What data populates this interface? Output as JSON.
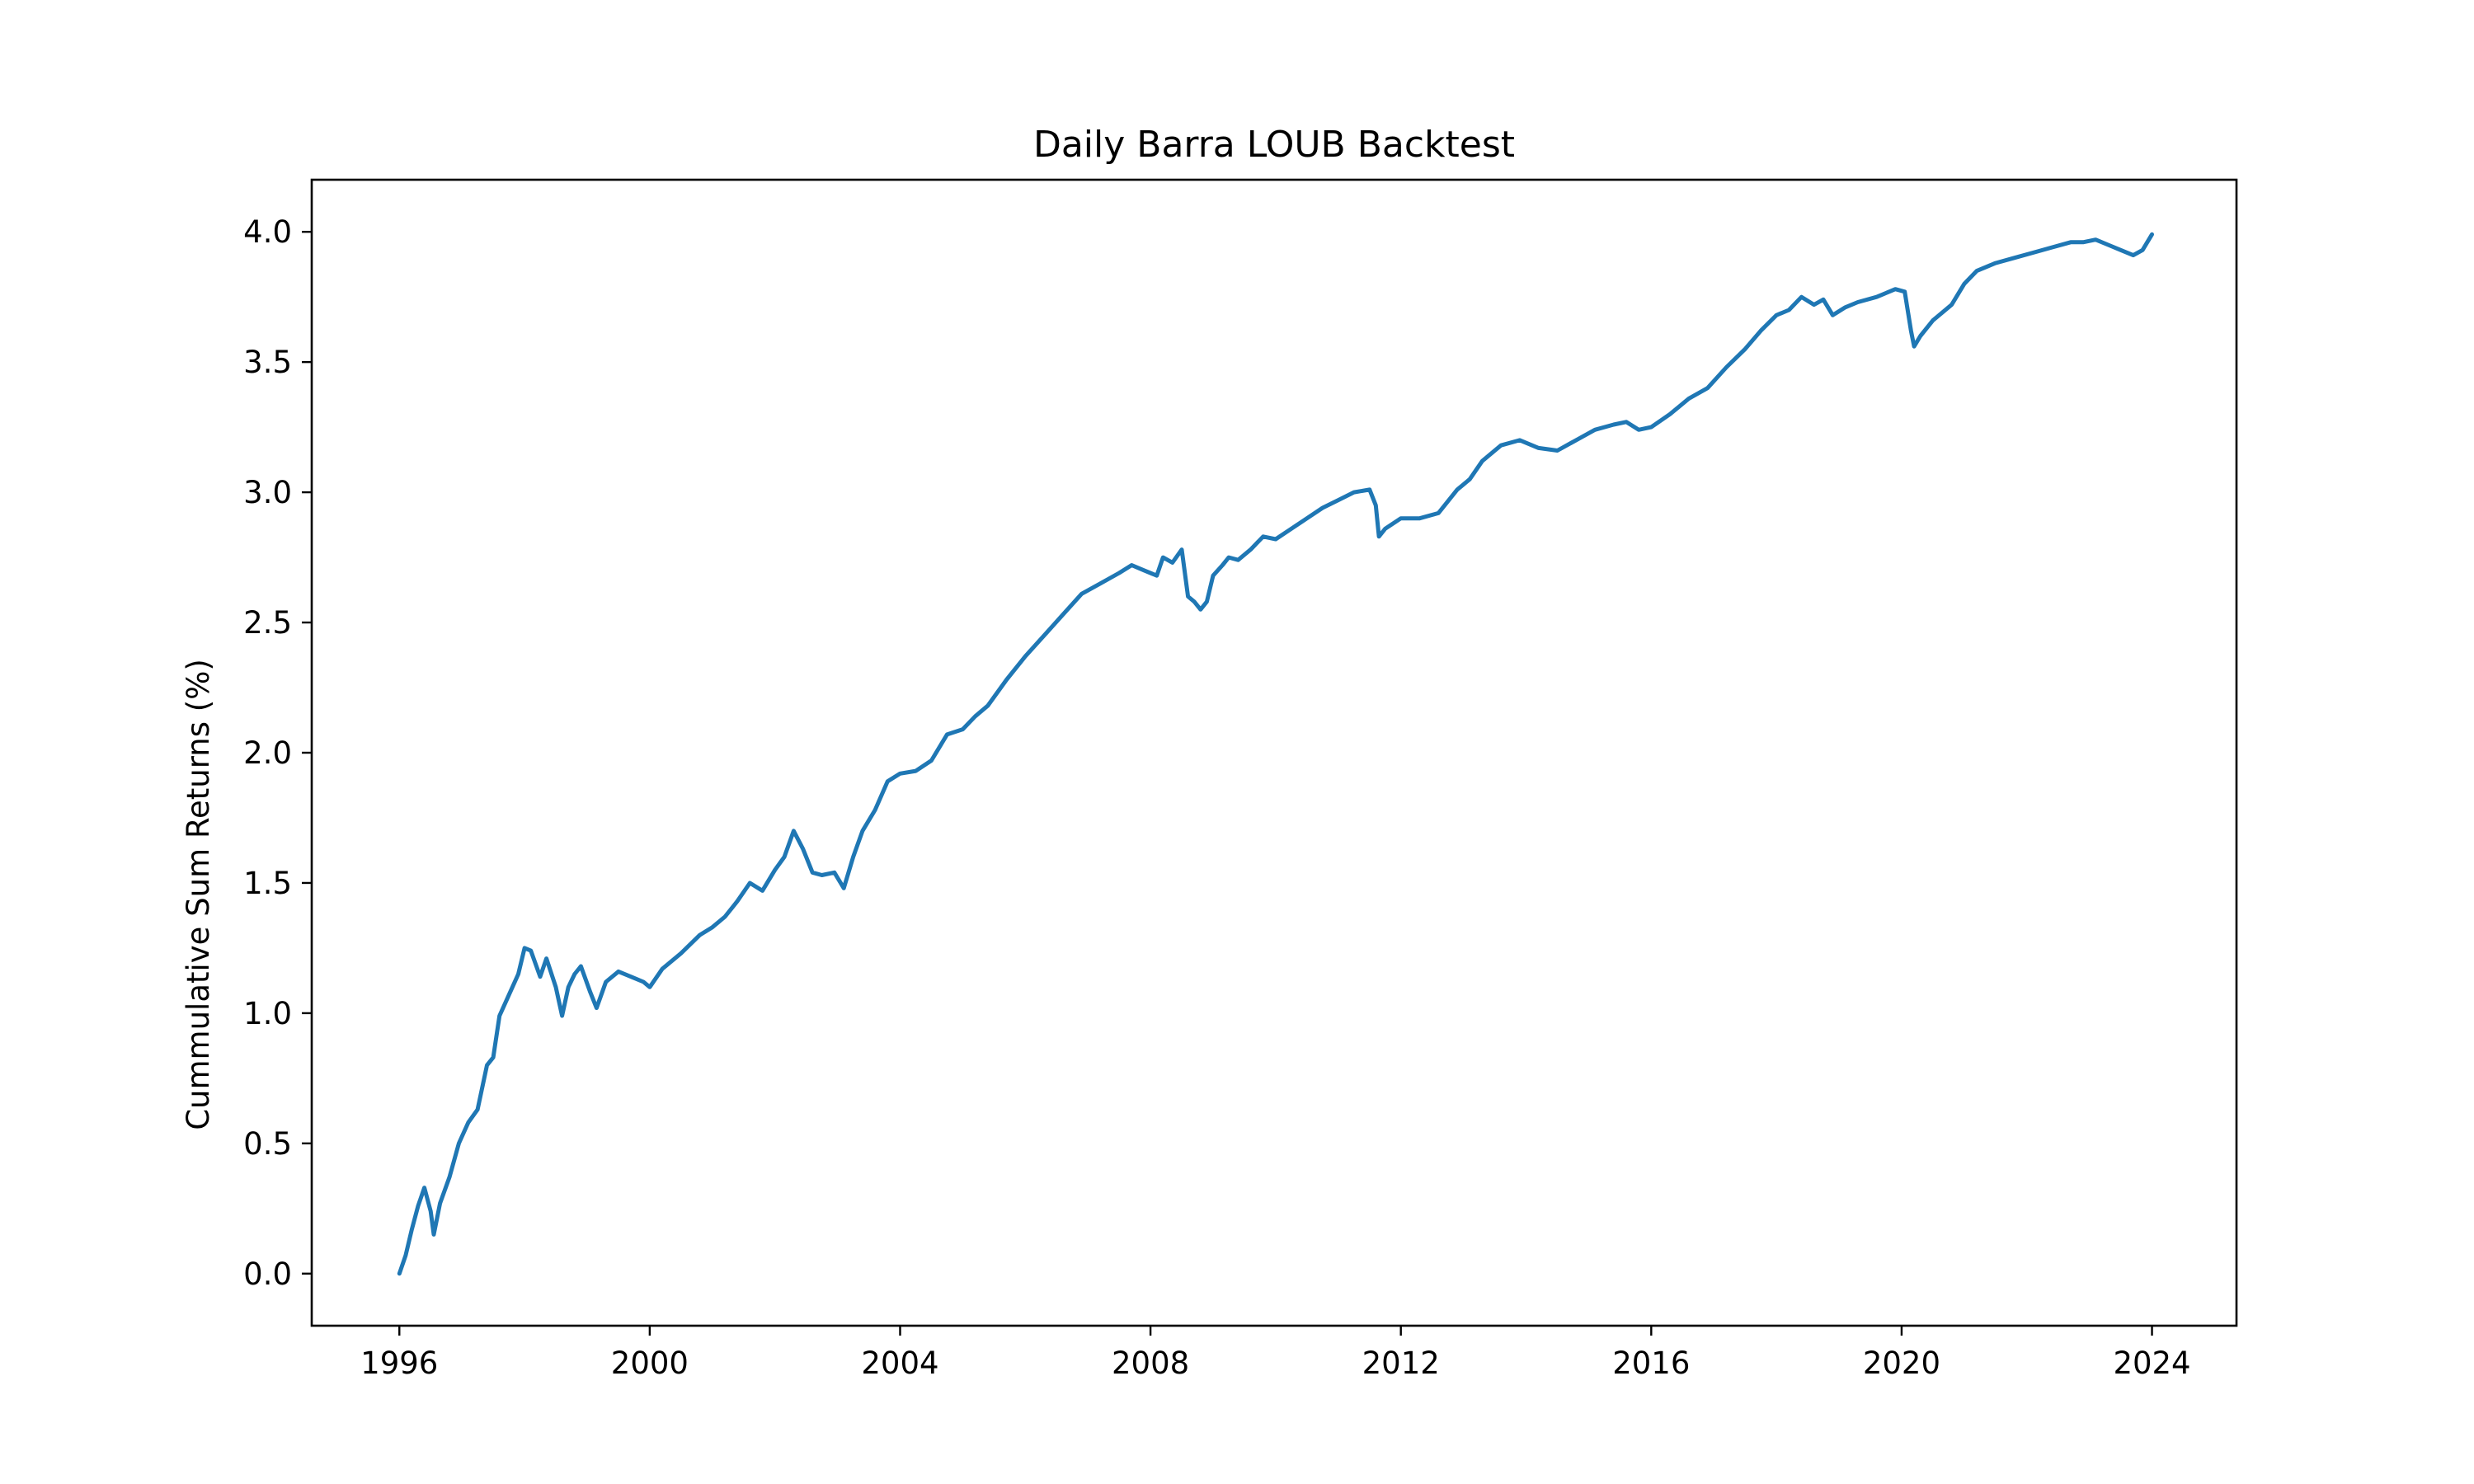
{
  "chart_data": {
    "type": "line",
    "title": "Daily Barra LOUB Backtest",
    "xlabel": "",
    "ylabel": "Cummulative Sum Returns (%)",
    "xlim": [
      1994.6,
      2025.35
    ],
    "ylim": [
      -0.2,
      4.2
    ],
    "x_ticks": [
      1996,
      2000,
      2004,
      2008,
      2012,
      2016,
      2020,
      2024
    ],
    "x_tick_labels": [
      "1996",
      "2000",
      "2004",
      "2008",
      "2012",
      "2016",
      "2020",
      "2024"
    ],
    "y_ticks": [
      0.0,
      0.5,
      1.0,
      1.5,
      2.0,
      2.5,
      3.0,
      3.5,
      4.0
    ],
    "y_tick_labels": [
      "0.0",
      "0.5",
      "1.0",
      "1.5",
      "2.0",
      "2.5",
      "3.0",
      "3.5",
      "4.0"
    ],
    "grid": false,
    "legend": "none",
    "series": [
      {
        "color": "#1f77b4",
        "x": [
          1996.0,
          1996.1,
          1996.2,
          1996.3,
          1996.4,
          1996.5,
          1996.55,
          1996.65,
          1996.8,
          1996.95,
          1997.1,
          1997.25,
          1997.4,
          1997.5,
          1997.6,
          1997.75,
          1997.9,
          1998.0,
          1998.1,
          1998.25,
          1998.35,
          1998.5,
          1998.6,
          1998.7,
          1998.8,
          1998.9,
          1999.05,
          1999.15,
          1999.3,
          1999.5,
          1999.7,
          1999.9,
          2000.0,
          2000.2,
          2000.5,
          2000.8,
          2001.0,
          2001.2,
          2001.4,
          2001.6,
          2001.8,
          2002.0,
          2002.15,
          2002.3,
          2002.45,
          2002.6,
          2002.75,
          2002.95,
          2003.1,
          2003.25,
          2003.4,
          2003.6,
          2003.8,
          2004.0,
          2004.25,
          2004.5,
          2004.75,
          2005.0,
          2005.2,
          2005.4,
          2005.7,
          2006.0,
          2006.3,
          2006.6,
          2006.9,
          2007.2,
          2007.5,
          2007.7,
          2007.9,
          2008.1,
          2008.2,
          2008.35,
          2008.5,
          2008.6,
          2008.7,
          2008.8,
          2008.9,
          2009.0,
          2009.15,
          2009.25,
          2009.4,
          2009.6,
          2009.8,
          2010.0,
          2010.25,
          2010.5,
          2010.75,
          2011.0,
          2011.25,
          2011.5,
          2011.6,
          2011.65,
          2011.75,
          2012.0,
          2012.3,
          2012.6,
          2012.9,
          2013.1,
          2013.3,
          2013.6,
          2013.9,
          2014.2,
          2014.5,
          2014.8,
          2015.1,
          2015.4,
          2015.6,
          2015.8,
          2016.0,
          2016.3,
          2016.6,
          2016.9,
          2017.2,
          2017.5,
          2017.75,
          2018.0,
          2018.2,
          2018.4,
          2018.6,
          2018.75,
          2018.9,
          2019.1,
          2019.3,
          2019.6,
          2019.9,
          2020.05,
          2020.15,
          2020.2,
          2020.3,
          2020.5,
          2020.8,
          2021.0,
          2021.2,
          2021.5,
          2021.8,
          2022.1,
          2022.4,
          2022.7,
          2022.9,
          2023.1,
          2023.3,
          2023.5,
          2023.7,
          2023.85,
          2024.0
        ],
        "y": [
          0.0,
          0.07,
          0.17,
          0.26,
          0.33,
          0.24,
          0.15,
          0.27,
          0.37,
          0.5,
          0.58,
          0.63,
          0.8,
          0.83,
          0.99,
          1.07,
          1.15,
          1.25,
          1.24,
          1.14,
          1.21,
          1.1,
          0.99,
          1.1,
          1.15,
          1.18,
          1.08,
          1.02,
          1.12,
          1.16,
          1.14,
          1.12,
          1.1,
          1.17,
          1.23,
          1.3,
          1.33,
          1.37,
          1.43,
          1.5,
          1.47,
          1.55,
          1.6,
          1.7,
          1.63,
          1.54,
          1.53,
          1.54,
          1.48,
          1.6,
          1.7,
          1.78,
          1.89,
          1.92,
          1.93,
          1.97,
          2.07,
          2.09,
          2.14,
          2.18,
          2.28,
          2.37,
          2.45,
          2.53,
          2.61,
          2.65,
          2.69,
          2.72,
          2.7,
          2.68,
          2.75,
          2.73,
          2.78,
          2.6,
          2.58,
          2.55,
          2.58,
          2.68,
          2.72,
          2.75,
          2.74,
          2.78,
          2.83,
          2.82,
          2.86,
          2.9,
          2.94,
          2.97,
          3.0,
          3.01,
          2.95,
          2.83,
          2.86,
          2.9,
          2.9,
          2.92,
          3.01,
          3.05,
          3.12,
          3.18,
          3.2,
          3.17,
          3.16,
          3.2,
          3.24,
          3.26,
          3.27,
          3.24,
          3.25,
          3.3,
          3.36,
          3.4,
          3.48,
          3.55,
          3.62,
          3.68,
          3.7,
          3.75,
          3.72,
          3.74,
          3.68,
          3.71,
          3.73,
          3.75,
          3.78,
          3.77,
          3.62,
          3.56,
          3.6,
          3.66,
          3.72,
          3.8,
          3.85,
          3.88,
          3.9,
          3.92,
          3.94,
          3.96,
          3.96,
          3.97,
          3.95,
          3.93,
          3.91,
          3.93,
          3.99
        ]
      }
    ]
  }
}
